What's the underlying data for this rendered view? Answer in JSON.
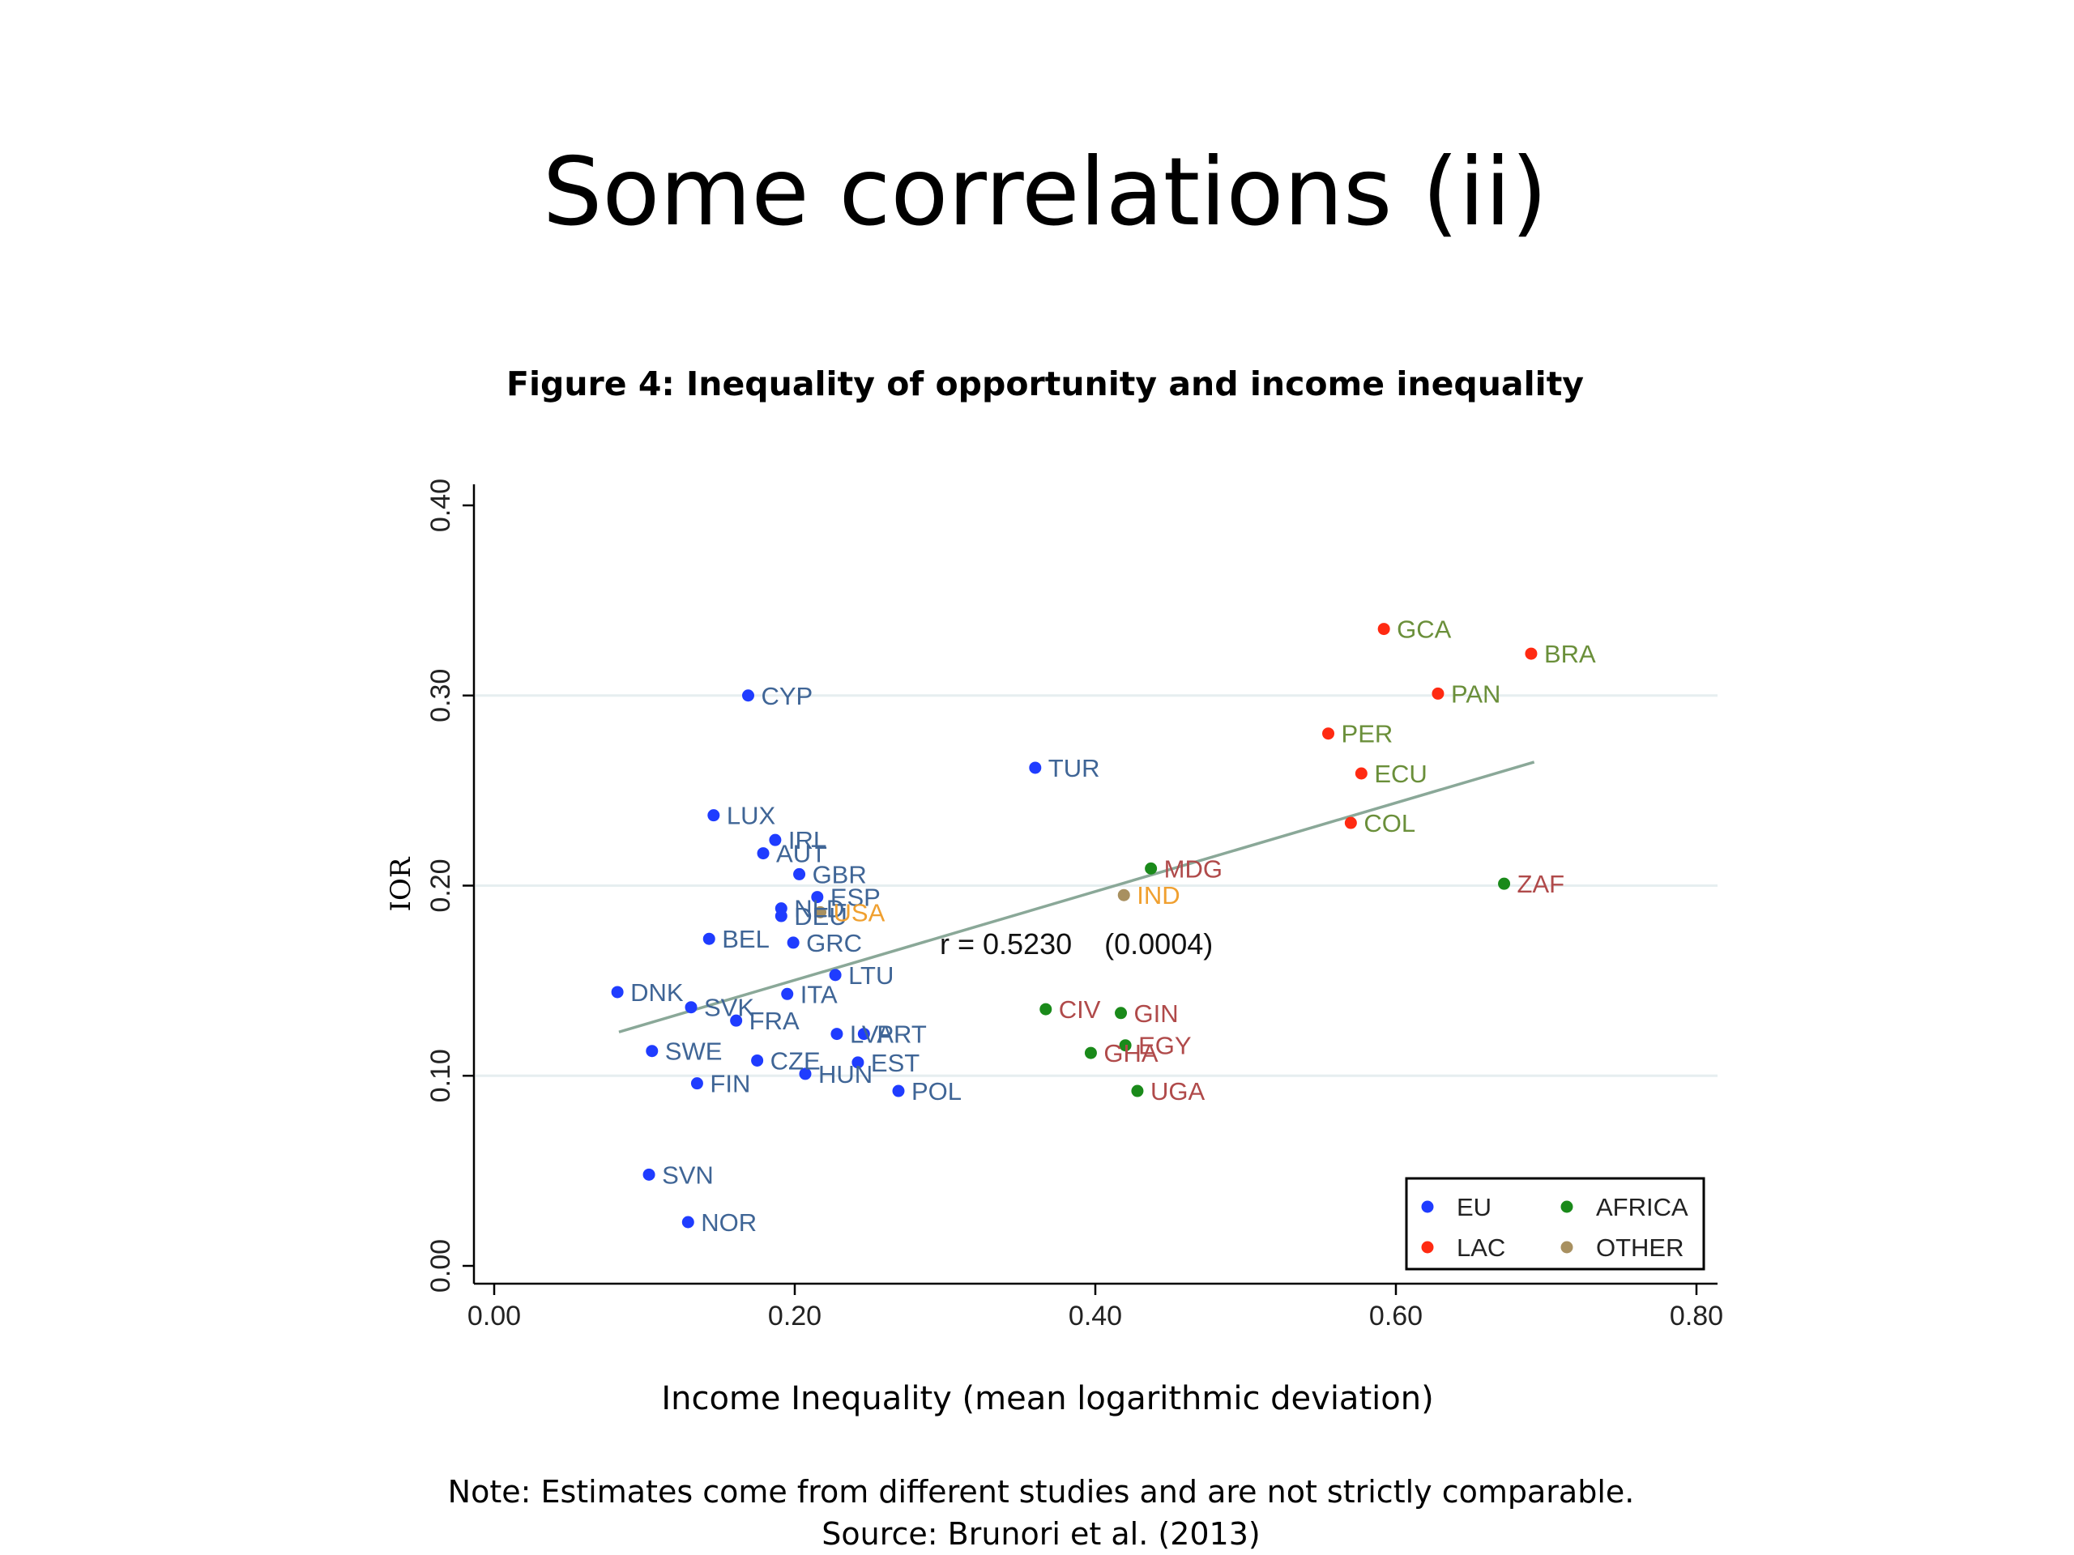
{
  "slide": {
    "title": "Some correlations (ii)",
    "figure_caption": "Figure 4: Inequality of opportunity and income inequality",
    "note": "Note: Estimates come from different studies and are not strictly comparable.",
    "source": "Source: Brunori et al. (2013)"
  },
  "chart_data": {
    "type": "scatter",
    "title": "",
    "xlabel": "Income Inequality (mean logarithmic deviation)",
    "ylabel": "IOR",
    "xlim": [
      0.0,
      0.8
    ],
    "ylim": [
      0.0,
      0.4
    ],
    "xticks": [
      "0.00",
      "0.20",
      "0.40",
      "0.60",
      "0.80"
    ],
    "yticks": [
      "0.00",
      "0.10",
      "0.20",
      "0.30",
      "0.40"
    ],
    "grid": "horizontal",
    "legend_position": "bottom-right",
    "annotation": "r = 0.5230    (0.0004)",
    "fit_line": {
      "x": [
        0.083,
        0.692
      ],
      "y": [
        0.123,
        0.265
      ]
    },
    "groups": [
      {
        "name": "EU",
        "point_color": "#1f3cff",
        "label_color": "#3f6596"
      },
      {
        "name": "AFRICA",
        "point_color": "#1a8a1a",
        "label_color": "#b04a4a"
      },
      {
        "name": "LAC",
        "point_color": "#ff2a12",
        "label_color": "#6a8f3a"
      },
      {
        "name": "OTHER",
        "point_color": "#a89060",
        "label_color": "#f0a030"
      }
    ],
    "fit_color": "#8aa898",
    "series": [
      {
        "name": "EU",
        "points": [
          {
            "label": "CYP",
            "x": 0.169,
            "y": 0.3
          },
          {
            "label": "TUR",
            "x": 0.36,
            "y": 0.262
          },
          {
            "label": "LUX",
            "x": 0.146,
            "y": 0.237
          },
          {
            "label": "IRL",
            "x": 0.187,
            "y": 0.224
          },
          {
            "label": "AUT",
            "x": 0.179,
            "y": 0.217
          },
          {
            "label": "GBR",
            "x": 0.203,
            "y": 0.206
          },
          {
            "label": "ESP",
            "x": 0.215,
            "y": 0.194
          },
          {
            "label": "NLD",
            "x": 0.191,
            "y": 0.188
          },
          {
            "label": "DEU",
            "x": 0.191,
            "y": 0.184
          },
          {
            "label": "BEL",
            "x": 0.143,
            "y": 0.172
          },
          {
            "label": "GRC",
            "x": 0.199,
            "y": 0.17
          },
          {
            "label": "LTU",
            "x": 0.227,
            "y": 0.153
          },
          {
            "label": "DNK",
            "x": 0.082,
            "y": 0.144
          },
          {
            "label": "ITA",
            "x": 0.195,
            "y": 0.143
          },
          {
            "label": "SVK",
            "x": 0.131,
            "y": 0.136
          },
          {
            "label": "FRA",
            "x": 0.161,
            "y": 0.129
          },
          {
            "label": "LVA",
            "x": 0.228,
            "y": 0.122
          },
          {
            "label": "PRT",
            "x": 0.246,
            "y": 0.122
          },
          {
            "label": "SWE",
            "x": 0.105,
            "y": 0.113
          },
          {
            "label": "CZE",
            "x": 0.175,
            "y": 0.108
          },
          {
            "label": "EST",
            "x": 0.242,
            "y": 0.107
          },
          {
            "label": "HUN",
            "x": 0.207,
            "y": 0.101
          },
          {
            "label": "FIN",
            "x": 0.135,
            "y": 0.096
          },
          {
            "label": "POL",
            "x": 0.269,
            "y": 0.092
          },
          {
            "label": "SVN",
            "x": 0.103,
            "y": 0.048
          },
          {
            "label": "NOR",
            "x": 0.129,
            "y": 0.023
          }
        ]
      },
      {
        "name": "LAC",
        "points": [
          {
            "label": "GCA",
            "x": 0.592,
            "y": 0.335
          },
          {
            "label": "BRA",
            "x": 0.69,
            "y": 0.322
          },
          {
            "label": "PAN",
            "x": 0.628,
            "y": 0.301
          },
          {
            "label": "PER",
            "x": 0.555,
            "y": 0.28
          },
          {
            "label": "ECU",
            "x": 0.577,
            "y": 0.259
          },
          {
            "label": "COL",
            "x": 0.57,
            "y": 0.233
          }
        ]
      },
      {
        "name": "AFRICA",
        "points": [
          {
            "label": "ZAF",
            "x": 0.672,
            "y": 0.201
          },
          {
            "label": "MDG",
            "x": 0.437,
            "y": 0.209
          },
          {
            "label": "CIV",
            "x": 0.367,
            "y": 0.135
          },
          {
            "label": "GIN",
            "x": 0.417,
            "y": 0.133
          },
          {
            "label": "EGY",
            "x": 0.42,
            "y": 0.116
          },
          {
            "label": "GHA",
            "x": 0.397,
            "y": 0.112
          },
          {
            "label": "UGA",
            "x": 0.428,
            "y": 0.092
          }
        ]
      },
      {
        "name": "OTHER",
        "points": [
          {
            "label": "IND",
            "x": 0.419,
            "y": 0.195
          },
          {
            "label": "USA",
            "x": 0.217,
            "y": 0.186
          }
        ]
      }
    ]
  }
}
